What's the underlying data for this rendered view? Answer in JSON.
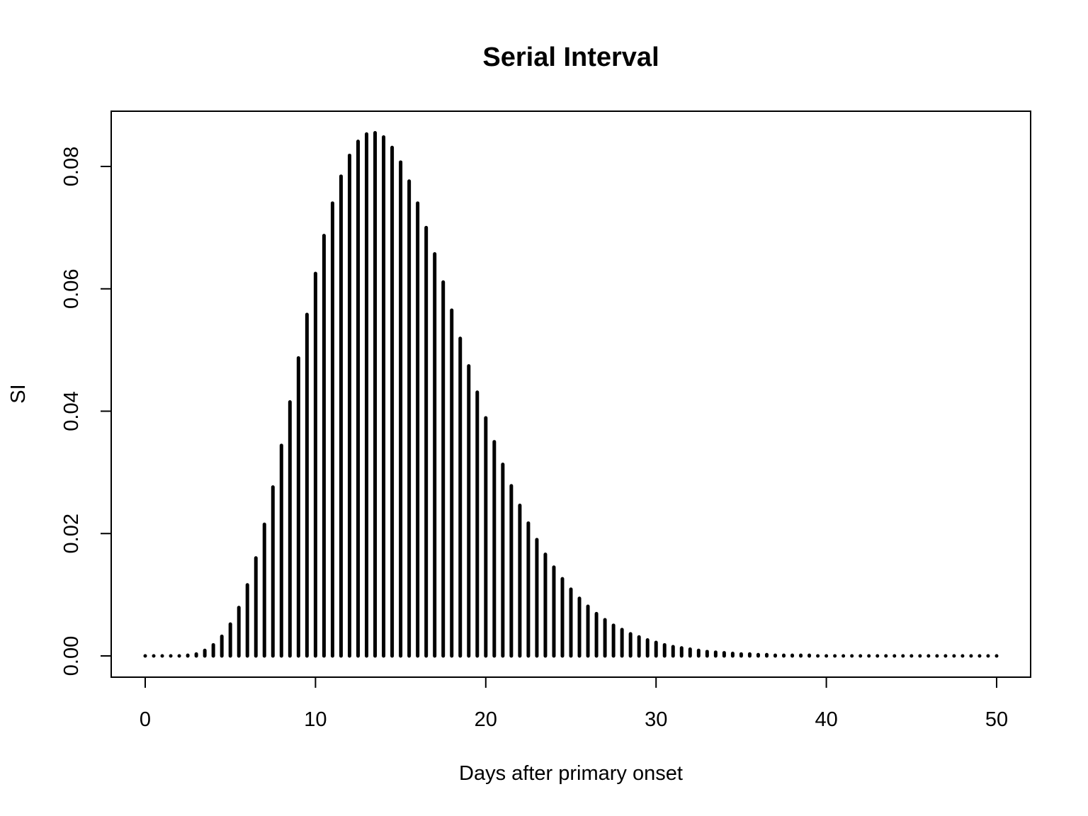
{
  "chart_data": {
    "type": "bar",
    "style": "histogram-spikes",
    "title": "Serial Interval",
    "xlabel": "Days after primary onset",
    "ylabel": "SI",
    "xlim": [
      0,
      50
    ],
    "ylim": [
      0,
      0.085
    ],
    "x_ticks": [
      0,
      10,
      20,
      30,
      40,
      50
    ],
    "y_ticks": [
      0.0,
      0.02,
      0.04,
      0.06,
      0.08
    ],
    "x_tick_labels": [
      "0",
      "10",
      "20",
      "30",
      "40",
      "50"
    ],
    "y_tick_labels": [
      "0.00",
      "0.02",
      "0.04",
      "0.06",
      "0.08"
    ],
    "grid": false,
    "legend": "none",
    "x": [
      0,
      0.5,
      1,
      1.5,
      2,
      2.5,
      3,
      3.5,
      4,
      4.5,
      5,
      5.5,
      6,
      6.5,
      7,
      7.5,
      8,
      8.5,
      9,
      9.5,
      10,
      10.5,
      11,
      11.5,
      12,
      12.5,
      13,
      13.5,
      14,
      14.5,
      15,
      15.5,
      16,
      16.5,
      17,
      17.5,
      18,
      18.5,
      19,
      19.5,
      20,
      20.5,
      21,
      21.5,
      22,
      22.5,
      23,
      23.5,
      24,
      24.5,
      25,
      25.5,
      26,
      26.5,
      27,
      27.5,
      28,
      28.5,
      29,
      29.5,
      30,
      30.5,
      31,
      31.5,
      32,
      32.5,
      33,
      33.5,
      34,
      34.5,
      35,
      35.5,
      36,
      36.5,
      37,
      37.5,
      38,
      38.5,
      39,
      39.5,
      40,
      40.5,
      41,
      41.5,
      42,
      42.5,
      43,
      43.5,
      44,
      44.5,
      45,
      45.5,
      46,
      46.5,
      47,
      47.5,
      48,
      48.5,
      49,
      49.5,
      50
    ],
    "values": [
      0,
      0,
      0,
      0,
      0,
      0.0001,
      0.0003,
      0.0009,
      0.0018,
      0.0032,
      0.0052,
      0.0079,
      0.0116,
      0.016,
      0.0215,
      0.0276,
      0.0344,
      0.0415,
      0.0487,
      0.0558,
      0.0625,
      0.0687,
      0.074,
      0.0784,
      0.0818,
      0.0841,
      0.0853,
      0.0855,
      0.0848,
      0.0831,
      0.0807,
      0.0776,
      0.074,
      0.07,
      0.0657,
      0.0611,
      0.0565,
      0.0519,
      0.0474,
      0.0431,
      0.0389,
      0.035,
      0.0313,
      0.0278,
      0.0246,
      0.0217,
      0.019,
      0.0166,
      0.0145,
      0.0126,
      0.0109,
      0.0094,
      0.0081,
      0.0069,
      0.0059,
      0.005,
      0.0043,
      0.0036,
      0.0031,
      0.0026,
      0.0022,
      0.0018,
      0.0015,
      0.0013,
      0.0011,
      0.0009,
      0.0007,
      0.0006,
      0.0005,
      0.0004,
      0.0003,
      0.0003,
      0.0002,
      0.0002,
      0.0001,
      0.0001,
      0.0001,
      0.0001,
      0.0001,
      0,
      0,
      0,
      0,
      0,
      0,
      0,
      0,
      0,
      0,
      0,
      0,
      0,
      0,
      0,
      0,
      0,
      0,
      0,
      0,
      0,
      0
    ]
  }
}
